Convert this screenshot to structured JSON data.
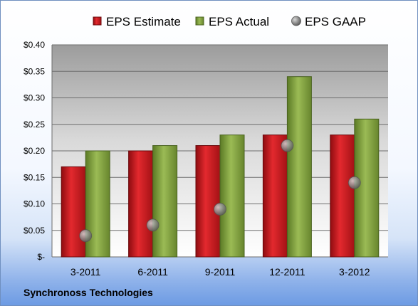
{
  "chart_data": {
    "type": "bar",
    "categories": [
      "3-2011",
      "6-2011",
      "9-2011",
      "12-2011",
      "3-2012"
    ],
    "series": [
      {
        "name": "EPS Estimate",
        "kind": "bar",
        "color": "#c0151b",
        "values": [
          0.17,
          0.2,
          0.21,
          0.23,
          0.23
        ]
      },
      {
        "name": "EPS Actual",
        "kind": "bar",
        "color": "#7a9a3a",
        "values": [
          0.2,
          0.21,
          0.23,
          0.34,
          0.26
        ]
      },
      {
        "name": "EPS GAAP",
        "kind": "marker",
        "color": "#8a8a8a",
        "values": [
          0.04,
          0.06,
          0.09,
          0.21,
          0.14
        ]
      }
    ],
    "yticks": [
      {
        "value": 0.0,
        "label": "$-"
      },
      {
        "value": 0.05,
        "label": "$0.05"
      },
      {
        "value": 0.1,
        "label": "$0.10"
      },
      {
        "value": 0.15,
        "label": "$0.15"
      },
      {
        "value": 0.2,
        "label": "$0.20"
      },
      {
        "value": 0.25,
        "label": "$0.25"
      },
      {
        "value": 0.3,
        "label": "$0.30"
      },
      {
        "value": 0.35,
        "label": "$0.35"
      },
      {
        "value": 0.4,
        "label": "$0.40"
      }
    ],
    "ylim": [
      0,
      0.4
    ],
    "grid": true,
    "legend": "top",
    "footer": "Synchronoss Technologies"
  }
}
